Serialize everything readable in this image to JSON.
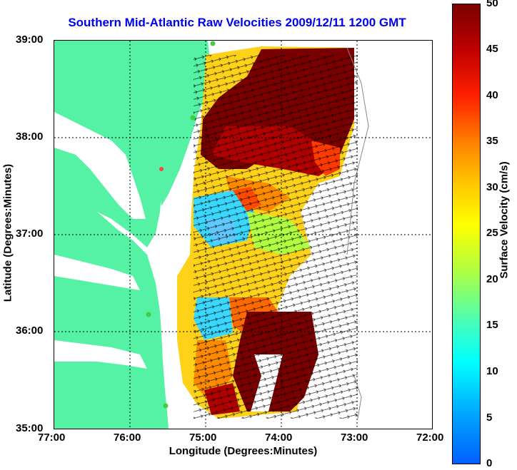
{
  "title": "Southern Mid-Atlantic Raw Velocities 2009/12/11 1200 GMT",
  "xaxis": {
    "label": "Longitude (Degrees:Minutes)",
    "ticks": [
      "77:00",
      "76:00",
      "75:00",
      "74:00",
      "73:00",
      "72:00"
    ]
  },
  "yaxis": {
    "label": "Latitude (Degrees:Minutes)",
    "ticks": [
      "39:00",
      "38:00",
      "37:00",
      "36:00",
      "35:00"
    ]
  },
  "colorbar": {
    "label": "Surface Velocity (cm/s)",
    "ticks": [
      "50",
      "45",
      "40",
      "35",
      "30",
      "25",
      "20",
      "15",
      "10",
      "5",
      "0"
    ],
    "range": [
      0,
      50
    ],
    "colors": {
      "low": "#0060ff",
      "mid": "#ffff00",
      "high": "#7a0000"
    }
  },
  "map": {
    "land_color": "#55f2a5",
    "grid": "dotted",
    "lon_range": [
      "77:00",
      "72:00"
    ],
    "lat_range": [
      "35:00",
      "39:00"
    ]
  }
}
